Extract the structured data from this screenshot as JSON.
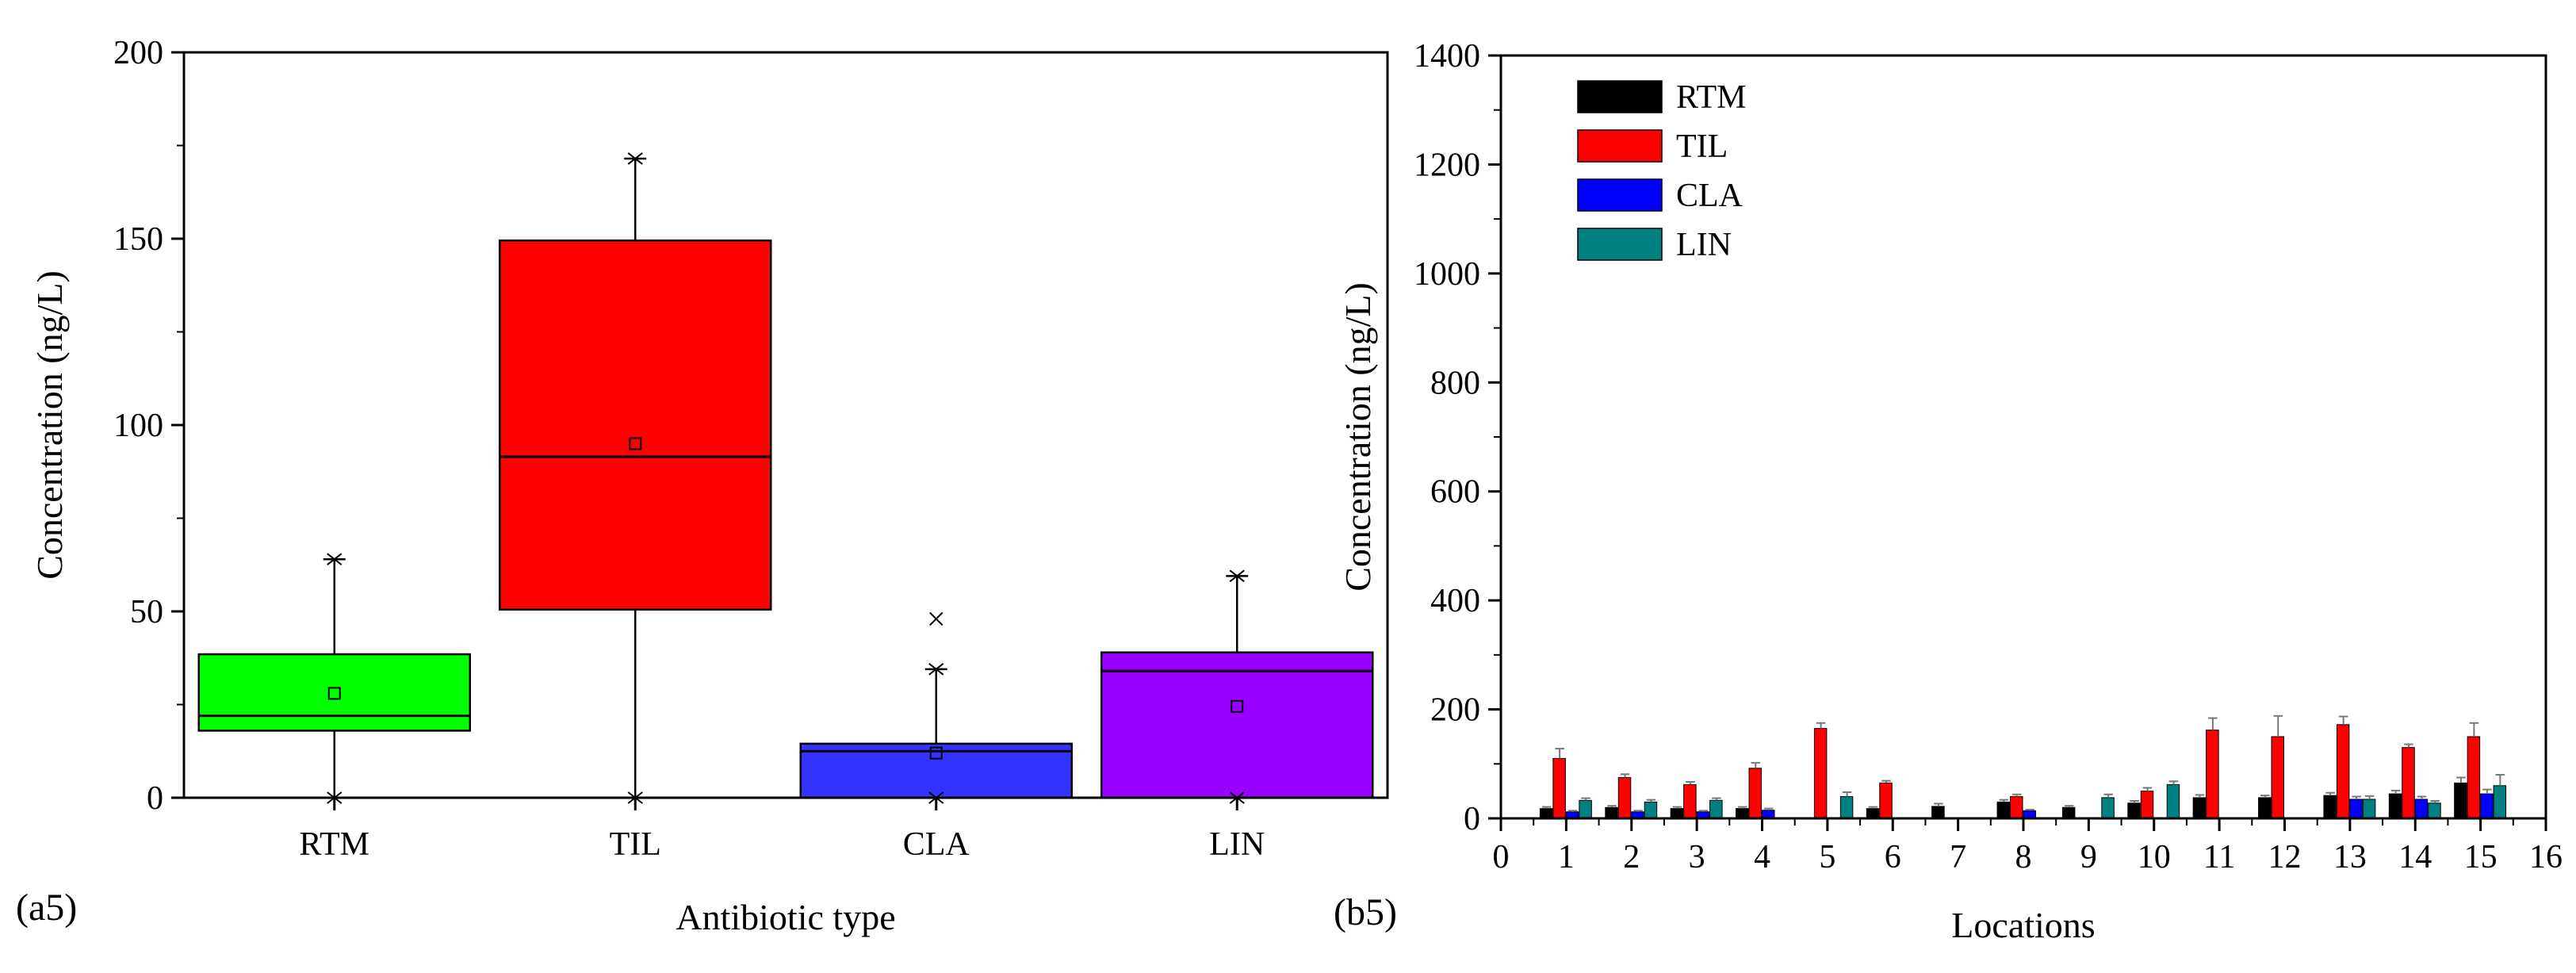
{
  "chart_data": [
    {
      "panel_label": "(a5)",
      "type": "box",
      "title": "",
      "xlabel": "Antibiotic type",
      "ylabel": "Concentration (ng/L)",
      "ylim": [
        0,
        200
      ],
      "yticks": [
        0,
        50,
        100,
        150,
        200
      ],
      "ytick_labels": [
        "0",
        "50",
        "100",
        "150",
        "200"
      ],
      "categories": [
        "RTM",
        "TIL",
        "CLA",
        "LIN"
      ],
      "colors": [
        "#00ff00",
        "#ff0000",
        "#3333ff",
        "#9900ff"
      ],
      "boxes": [
        {
          "name": "RTM",
          "min": 0,
          "q1": 18,
          "median": 22,
          "q3": 38.5,
          "max": 64,
          "mean": 28,
          "outliers": []
        },
        {
          "name": "TIL",
          "min": 0,
          "q1": 50.5,
          "median": 91.5,
          "q3": 149.5,
          "max": 171.5,
          "mean": 95,
          "outliers": []
        },
        {
          "name": "CLA",
          "min": 0,
          "q1": 0,
          "median": 12.5,
          "q3": 14.5,
          "max": 34.5,
          "mean": 12,
          "outliers": [
            48
          ]
        },
        {
          "name": "LIN",
          "min": 0,
          "q1": 0,
          "median": 34,
          "q3": 39,
          "max": 59.5,
          "mean": 24.5,
          "outliers": []
        }
      ]
    },
    {
      "panel_label": "(b5)",
      "type": "bar",
      "title": "",
      "xlabel": "Locations",
      "ylabel": "Concentration (ng/L)",
      "xlim": [
        0,
        16
      ],
      "ylim": [
        0,
        1400
      ],
      "xticks": [
        0,
        1,
        2,
        3,
        4,
        5,
        6,
        7,
        8,
        9,
        10,
        11,
        12,
        13,
        14,
        15,
        16
      ],
      "xtick_labels": [
        "0",
        "1",
        "2",
        "3",
        "4",
        "5",
        "6",
        "7",
        "8",
        "9",
        "10",
        "11",
        "12",
        "13",
        "14",
        "15",
        "16"
      ],
      "yticks": [
        0,
        200,
        400,
        600,
        800,
        1000,
        1200,
        1400
      ],
      "ytick_labels": [
        "0",
        "200",
        "400",
        "600",
        "800",
        "1000",
        "1200",
        "1400"
      ],
      "legend_position": "top-left",
      "categories": [
        1,
        2,
        3,
        4,
        5,
        6,
        7,
        8,
        9,
        10,
        11,
        12,
        13,
        14,
        15
      ],
      "series": [
        {
          "name": "RTM",
          "color": "#000000",
          "values": [
            18,
            20,
            18,
            18,
            0,
            18,
            22,
            30,
            20,
            28,
            38,
            38,
            42,
            45,
            65
          ],
          "errors": [
            3,
            3,
            3,
            3,
            0,
            3,
            5,
            4,
            3,
            4,
            5,
            4,
            5,
            6,
            10
          ]
        },
        {
          "name": "TIL",
          "color": "#ff0000",
          "values": [
            110,
            75,
            62,
            92,
            165,
            65,
            0,
            40,
            0,
            50,
            162,
            150,
            172,
            130,
            150
          ],
          "errors": [
            18,
            6,
            5,
            10,
            10,
            4,
            0,
            4,
            0,
            6,
            22,
            38,
            15,
            6,
            25
          ]
        },
        {
          "name": "CLA",
          "color": "#0000ff",
          "values": [
            12,
            12,
            12,
            15,
            0,
            0,
            0,
            14,
            0,
            0,
            0,
            0,
            35,
            35,
            45
          ],
          "errors": [
            2,
            2,
            2,
            3,
            0,
            0,
            0,
            2,
            0,
            0,
            0,
            0,
            5,
            5,
            8
          ]
        },
        {
          "name": "LIN",
          "color": "#008080",
          "values": [
            33,
            30,
            33,
            0,
            40,
            0,
            0,
            0,
            38,
            62,
            0,
            0,
            35,
            28,
            60
          ],
          "errors": [
            4,
            4,
            4,
            0,
            8,
            0,
            0,
            0,
            6,
            6,
            0,
            0,
            6,
            4,
            20
          ]
        }
      ]
    }
  ]
}
